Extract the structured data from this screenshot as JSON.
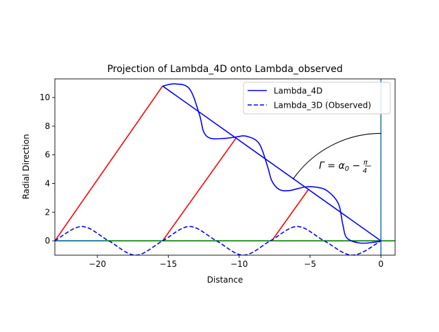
{
  "chart_data": {
    "type": "line",
    "title": "Projection of Lambda_4D onto Lambda_observed",
    "xlabel": "Distance",
    "ylabel": "Radial Direction",
    "xlim": [
      -23,
      1
    ],
    "ylim": [
      -1,
      11.3
    ],
    "xticks": [
      -20,
      -15,
      -10,
      -5,
      0
    ],
    "xtick_labels": [
      "−20",
      "−15",
      "−10",
      "−5",
      "0"
    ],
    "yticks": [
      0,
      2,
      4,
      6,
      8,
      10
    ],
    "ytick_labels": [
      "0",
      "2",
      "4",
      "6",
      "8",
      "10"
    ],
    "grid": false,
    "legend_position": "top-right",
    "series": [
      {
        "name": "Lambda_4D",
        "color": "#0000ff",
        "style": "solid",
        "description_of_shape": "straight line from (-15.4, 10.8) to (0, 0) with a sinusoidal ripple superimposed",
        "x": [
          -15.4,
          -14.5,
          -13.5,
          -12.8,
          -12.5,
          -12.0,
          -11.0,
          -10.2,
          -9.5,
          -8.6,
          -8.0,
          -7.7,
          -7.2,
          -6.5,
          -5.4,
          -4.6,
          -3.8,
          -3.0,
          -2.7,
          -2.4,
          -1.5,
          -0.5,
          0.0
        ],
        "y": [
          10.8,
          10.95,
          10.6,
          8.8,
          7.6,
          7.15,
          7.15,
          7.25,
          7.3,
          6.8,
          5.2,
          4.2,
          3.6,
          3.5,
          3.75,
          3.75,
          3.5,
          2.6,
          1.2,
          0.2,
          -0.15,
          -0.1,
          0.0
        ]
      },
      {
        "name": "Lambda_3D (Observed)",
        "color": "#0000ff",
        "style": "dashed",
        "x": [
          -23.0,
          -21.1,
          -19.2,
          -17.3,
          -15.4,
          -13.5,
          -11.6,
          -9.7,
          -7.8,
          -5.9,
          -4.0,
          -2.0,
          0.0
        ],
        "y": [
          0.0,
          1.0,
          0.0,
          -1.0,
          0.0,
          1.0,
          0.0,
          -1.0,
          0.0,
          1.0,
          0.0,
          -1.0,
          0.0
        ]
      }
    ],
    "projection_line": {
      "color": "#0000ff",
      "x": [
        -15.4,
        0.0
      ],
      "y": [
        10.8,
        0.0
      ]
    },
    "red_segments": {
      "color": "#ff0000",
      "segments": [
        [
          [
            -23.0,
            0.0
          ],
          [
            -15.4,
            10.8
          ]
        ],
        [
          [
            -15.4,
            0.0
          ],
          [
            -10.2,
            7.2
          ]
        ],
        [
          [
            -7.7,
            0.0
          ],
          [
            -5.1,
            3.6
          ]
        ]
      ]
    },
    "green_line": {
      "color": "#008000",
      "y": 0.0,
      "x": [
        -23.0,
        1.0
      ]
    },
    "vertical_line": {
      "color": "#1f77b4",
      "x": 0.0
    },
    "horizontal_baseline": {
      "color": "#1f77b4",
      "y": 0.0,
      "x": [
        -23.0,
        -19.5
      ]
    },
    "angle_arc": {
      "color": "#000000",
      "center": [
        0,
        0
      ],
      "radius": 7.5,
      "from_point": [
        -6.2,
        4.3
      ],
      "to_point": [
        0.0,
        7.5
      ]
    },
    "annotation": {
      "x": -4.5,
      "y": 5.2
    }
  }
}
